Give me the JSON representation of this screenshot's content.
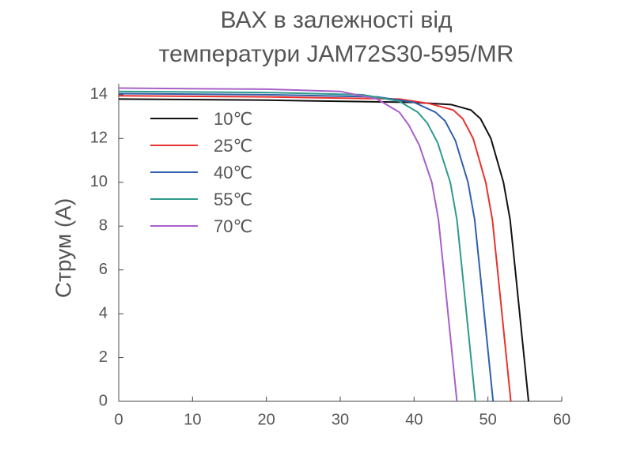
{
  "chart_data": {
    "type": "line",
    "title": [
      "ВАХ в залежності від",
      "температури JAM72S30-595/MR"
    ],
    "y_label": "Струм (А)",
    "xlim": [
      0,
      60
    ],
    "xticks": [
      0,
      10,
      20,
      30,
      40,
      50,
      60
    ],
    "ylim": [
      0,
      14.5
    ],
    "yticks": [
      0,
      2,
      4,
      6,
      8,
      10,
      12,
      14
    ],
    "legend": "upper left",
    "series": [
      {
        "name": "10℃",
        "color": "#111111",
        "x": [
          0,
          20,
          40,
          45,
          47.7,
          49,
          50.4,
          52.1,
          53,
          53.7,
          54.3,
          54.9,
          55.5
        ],
        "values": [
          13.8,
          13.75,
          13.65,
          13.55,
          13.3,
          12.9,
          12,
          10,
          8.3,
          6,
          4,
          2,
          0
        ]
      },
      {
        "name": "25℃",
        "color": "#e8322f",
        "x": [
          0,
          20,
          38,
          42,
          45.3,
          46.6,
          48,
          49.7,
          50.6,
          51.3,
          51.9,
          52.5,
          53.1
        ],
        "values": [
          13.95,
          13.9,
          13.8,
          13.6,
          13.3,
          12.9,
          12,
          10,
          8.3,
          6,
          4,
          2,
          0
        ]
      },
      {
        "name": "40℃",
        "color": "#2f5faa",
        "x": [
          0,
          20,
          35,
          40,
          42.9,
          44.2,
          45.6,
          47.3,
          48.2,
          48.9,
          49.5,
          50.1,
          50.7
        ],
        "values": [
          14.05,
          14.0,
          13.9,
          13.65,
          13.2,
          12.8,
          11.9,
          10,
          8.3,
          6,
          4,
          2,
          0
        ]
      },
      {
        "name": "55℃",
        "color": "#2e9a8c",
        "x": [
          0,
          20,
          33,
          38,
          40.5,
          41.8,
          43.2,
          44.9,
          45.8,
          46.5,
          47.1,
          47.7,
          48.3
        ],
        "values": [
          14.15,
          14.1,
          14.0,
          13.7,
          13.2,
          12.7,
          11.8,
          10,
          8.3,
          6,
          4,
          2,
          0
        ]
      },
      {
        "name": "70℃",
        "color": "#a860c8",
        "x": [
          0,
          20,
          30,
          35,
          38,
          39.3,
          40.7,
          42.4,
          43.3,
          44,
          44.6,
          45.2,
          45.8
        ],
        "values": [
          14.3,
          14.25,
          14.15,
          13.8,
          13.2,
          12.6,
          11.7,
          10,
          8.3,
          6,
          4,
          2,
          0
        ]
      }
    ]
  }
}
